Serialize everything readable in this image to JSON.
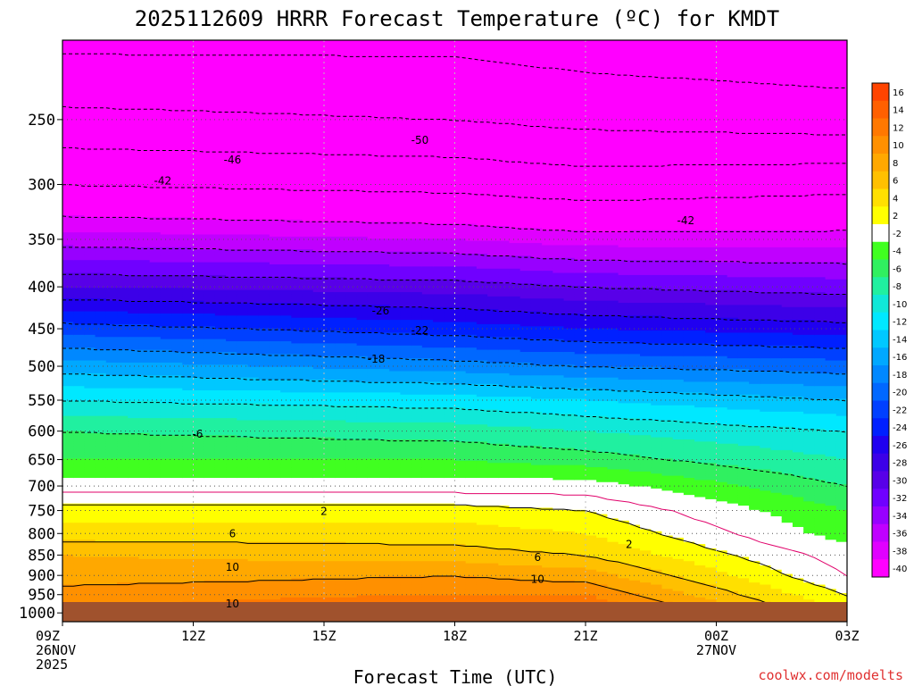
{
  "chart_data": {
    "type": "heatmap",
    "title": "2025112609 HRRR Forecast Temperature (ºC) for KMDT",
    "xlabel": "Forecast Time (UTC)",
    "ylabel": "",
    "credit": "coolwx.com/modelts",
    "x_ticks": [
      {
        "hour": 0,
        "label": "09Z",
        "date": "26NOV",
        "year": "2025"
      },
      {
        "hour": 3,
        "label": "12Z",
        "date": "",
        "year": ""
      },
      {
        "hour": 6,
        "label": "15Z",
        "date": "",
        "year": ""
      },
      {
        "hour": 9,
        "label": "18Z",
        "date": "",
        "year": ""
      },
      {
        "hour": 12,
        "label": "21Z",
        "date": "",
        "year": ""
      },
      {
        "hour": 15,
        "label": "00Z",
        "date": "27NOV",
        "year": ""
      },
      {
        "hour": 18,
        "label": "03Z",
        "date": "",
        "year": ""
      }
    ],
    "xlim": [
      0,
      18
    ],
    "y_pressure_levels_hPa": [
      250,
      300,
      350,
      400,
      450,
      500,
      550,
      600,
      650,
      700,
      750,
      800,
      850,
      900,
      950,
      1000
    ],
    "ylim_hPa": [
      200,
      1025
    ],
    "y_scale": "log-pressure (inverted)",
    "colorbar": {
      "levels": [
        16,
        14,
        12,
        10,
        8,
        6,
        4,
        2,
        -2,
        -4,
        -6,
        -8,
        -10,
        -12,
        -14,
        -16,
        -18,
        -20,
        -22,
        -24,
        -26,
        -28,
        -30,
        -32,
        -34,
        -36,
        -38,
        -40
      ],
      "colors": [
        "#ff4400",
        "#ff6000",
        "#ff7800",
        "#ff9000",
        "#ffa800",
        "#ffc000",
        "#ffe000",
        "#ffff00",
        "#ffffff",
        "#40ff20",
        "#30f060",
        "#20f0a0",
        "#10e8d8",
        "#00e8ff",
        "#00c8ff",
        "#00a8ff",
        "#0088ff",
        "#0068ff",
        "#0040ff",
        "#0020ff",
        "#2000f0",
        "#3c00e8",
        "#5800e8",
        "#7000ff",
        "#9800ff",
        "#c000ff",
        "#e000ff",
        "#ff00ff"
      ]
    },
    "temperature_profile_hPa_vs_C": {
      "pressure": [
        1000,
        950,
        900,
        850,
        800,
        750,
        700,
        650,
        600,
        550,
        500,
        450,
        400,
        350,
        300,
        250,
        200
      ],
      "hour_0": [
        12,
        11,
        9,
        8,
        5,
        3,
        -1,
        -4,
        -6,
        -10,
        -15,
        -21,
        -28,
        -35,
        -42,
        -49,
        -55
      ],
      "hour_9": [
        15,
        12,
        10,
        7,
        5,
        3,
        -1,
        -4,
        -7,
        -11,
        -17,
        -23,
        -29,
        -36,
        -43,
        -50,
        -55
      ],
      "hour_12": [
        15,
        12,
        9,
        6,
        4,
        2,
        -1,
        -5,
        -8,
        -12,
        -18,
        -24,
        -30,
        -37,
        -44,
        -51,
        -56
      ],
      "hour_18": [
        4,
        2,
        0,
        -1,
        -3,
        -4,
        -6,
        -8,
        -10,
        -14,
        -19,
        -25,
        -31,
        -37,
        -43,
        -52,
        -57
      ]
    },
    "contour_labels": [
      {
        "value": "-50",
        "hour": 8.2,
        "hPa": 265
      },
      {
        "value": "-46",
        "hour": 3.9,
        "hPa": 280
      },
      {
        "value": "-42",
        "hour": 2.3,
        "hPa": 297
      },
      {
        "value": "-42",
        "hour": 14.3,
        "hPa": 332
      },
      {
        "value": "-26",
        "hour": 7.3,
        "hPa": 428
      },
      {
        "value": "-22",
        "hour": 8.2,
        "hPa": 452
      },
      {
        "value": "-18",
        "hour": 7.2,
        "hPa": 490
      },
      {
        "value": "-6",
        "hour": 3.1,
        "hPa": 605
      },
      {
        "value": "2",
        "hour": 6.0,
        "hPa": 752
      },
      {
        "value": "6",
        "hour": 3.9,
        "hPa": 800
      },
      {
        "value": "2",
        "hour": 13.0,
        "hPa": 825
      },
      {
        "value": "6",
        "hour": 10.9,
        "hPa": 855
      },
      {
        "value": "10",
        "hour": 3.9,
        "hPa": 880
      },
      {
        "value": "10",
        "hour": 10.9,
        "hPa": 910
      },
      {
        "value": "10",
        "hour": 3.9,
        "hPa": 975
      }
    ],
    "grid": true,
    "ground_color": "#a0522d"
  }
}
